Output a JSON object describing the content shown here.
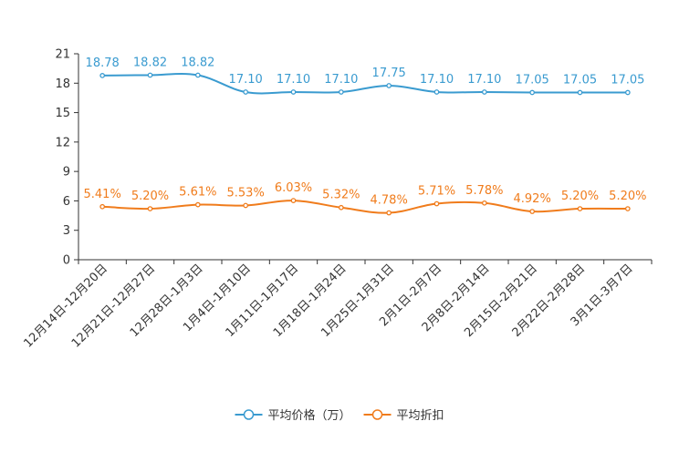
{
  "chart_data": {
    "type": "line",
    "title": "",
    "xlabel": "",
    "ylabel": "",
    "ylim": [
      0,
      21
    ],
    "yticks": [
      0,
      3,
      6,
      9,
      12,
      15,
      18,
      21
    ],
    "grid": false,
    "legend_position": "bottom",
    "categories": [
      "12月14日-12月20日",
      "12月21日-12月27日",
      "12月28日-1月3日",
      "1月4日-1月10日",
      "1月11日-1月17日",
      "1月18日-1月24日",
      "1月25日-1月31日",
      "2月1日-2月7日",
      "2月8日-2月14日",
      "2月15日-2月21日",
      "2月22日-2月28日",
      "3月1日-3月7日"
    ],
    "series": [
      {
        "name": "平均价格（万）",
        "color": "#3a9bd0",
        "values": [
          18.78,
          18.82,
          18.82,
          17.1,
          17.1,
          17.1,
          17.75,
          17.1,
          17.1,
          17.05,
          17.05,
          17.05
        ],
        "labels": [
          "18.78",
          "18.82",
          "18.82",
          "17.10",
          "17.10",
          "17.10",
          "17.75",
          "17.10",
          "17.10",
          "17.05",
          "17.05",
          "17.05"
        ]
      },
      {
        "name": "平均折扣",
        "color": "#f07c1c",
        "values": [
          5.41,
          5.2,
          5.61,
          5.53,
          6.03,
          5.32,
          4.78,
          5.71,
          5.78,
          4.92,
          5.2,
          5.2
        ],
        "labels": [
          "5.41%",
          "5.20%",
          "5.61%",
          "5.53%",
          "6.03%",
          "5.32%",
          "4.78%",
          "5.71%",
          "5.78%",
          "4.92%",
          "5.20%",
          "5.20%"
        ]
      }
    ]
  }
}
